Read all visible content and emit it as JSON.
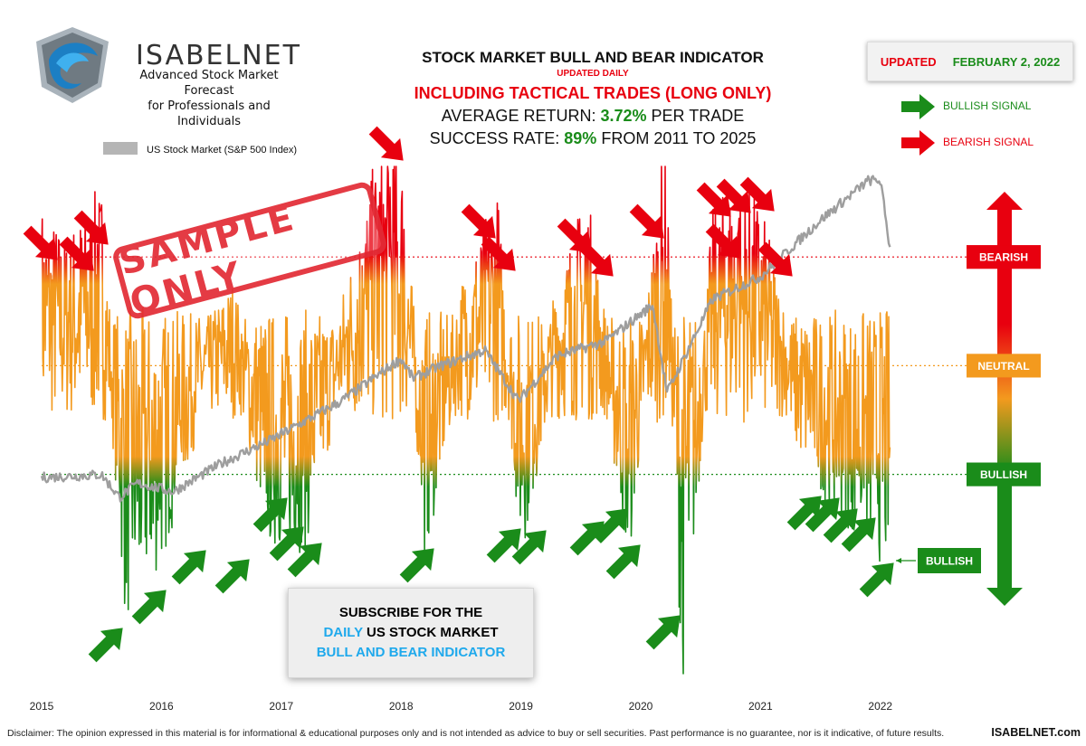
{
  "brand": {
    "name": "ISABELNET",
    "tagline_1": "Advanced Stock Market Forecast",
    "tagline_2": "for Professionals and Individuals"
  },
  "header": {
    "title": "STOCK MARKET BULL AND BEAR INDICATOR",
    "updated_daily": "UPDATED DAILY",
    "tactical": "INCLUDING TACTICAL TRADES (LONG ONLY)",
    "avg_return_label": "AVERAGE RETURN:",
    "avg_return_value": "3.72%",
    "avg_return_suffix": "PER TRADE",
    "success_label": "SUCCESS RATE:",
    "success_value": "89%",
    "success_suffix": "FROM 2011 TO 2025"
  },
  "updated_box": {
    "label": "UPDATED",
    "date": "FEBRUARY 2, 2022"
  },
  "signal_legend": {
    "bullish": "BULLISH SIGNAL",
    "bearish": "BEARISH SIGNAL"
  },
  "stamp": "SAMPLE ONLY",
  "subscribe": {
    "line1": "SUBSCRIBE FOR THE",
    "line2_highlight": "DAILY",
    "line2_rest": "US STOCK MARKET",
    "line3": "BULL AND BEAR INDICATOR"
  },
  "footer": {
    "disclaimer": "Disclaimer: The opinion expressed in this material is for informational & educational purposes only and is not intended as advice to buy or sell securities. Past performance is no guarantee, nor is it indicative, of future results.",
    "site": "ISABELNET.com"
  },
  "colors": {
    "bearish": "#e8000f",
    "neutral": "#f39a1e",
    "bullish": "#1a8c1a",
    "sp500": "#9e9e9e",
    "accent_blue": "#1fa9ec"
  },
  "chart_data": {
    "type": "line",
    "title": "STOCK MARKET BULL AND BEAR INDICATOR",
    "xlabel": "",
    "ylabel": "",
    "x_ticks": [
      "2015",
      "2016",
      "2017",
      "2018",
      "2019",
      "2020",
      "2021",
      "2022"
    ],
    "x_range": [
      2015.0,
      2022.1
    ],
    "levels": [
      {
        "name": "BEARISH",
        "color": "#e8000f"
      },
      {
        "name": "NEUTRAL",
        "color": "#f39a1e"
      },
      {
        "name": "BULLISH",
        "color": "#1a8c1a"
      }
    ],
    "indicator_scale": {
      "bearish_level": 80,
      "neutral_level": 50,
      "bullish_level": 20,
      "ylim": [
        -35,
        105
      ]
    },
    "current_label": "BULLISH",
    "legend": [
      {
        "name": "US Stock Market (S&P 500 Index)",
        "color": "#b5b5b5"
      }
    ],
    "series": [
      {
        "name": "US Stock Market (S&P 500 Index)",
        "scale": "relative",
        "x": [
          2015.0,
          2015.5,
          2015.65,
          2015.8,
          2016.1,
          2016.5,
          2016.9,
          2017.5,
          2018.0,
          2018.1,
          2018.3,
          2018.7,
          2018.98,
          2019.3,
          2019.7,
          2020.1,
          2020.22,
          2020.6,
          2021.0,
          2021.5,
          2021.9,
          2022.0,
          2022.08
        ],
        "values": [
          15,
          16,
          8,
          13,
          10,
          20,
          28,
          42,
          57,
          50,
          54,
          60,
          42,
          58,
          63,
          76,
          45,
          78,
          86,
          106,
          120,
          120,
          96
        ]
      }
    ],
    "indicator_peaks": {
      "x": [
        2015.0,
        2015.2,
        2015.5,
        2015.7,
        2016.0,
        2016.3,
        2016.6,
        2016.9,
        2017.2,
        2017.5,
        2017.85,
        2018.0,
        2018.2,
        2018.5,
        2018.8,
        2019.0,
        2019.3,
        2019.55,
        2019.9,
        2020.2,
        2020.35,
        2020.6,
        2020.8,
        2021.0,
        2021.3,
        2021.6,
        2021.9,
        2022.08
      ],
      "values": [
        80,
        72,
        85,
        -5,
        10,
        45,
        60,
        15,
        14,
        55,
        100,
        98,
        12,
        60,
        85,
        12,
        60,
        84,
        10,
        100,
        -25,
        78,
        88,
        80,
        40,
        25,
        15,
        8
      ]
    }
  }
}
